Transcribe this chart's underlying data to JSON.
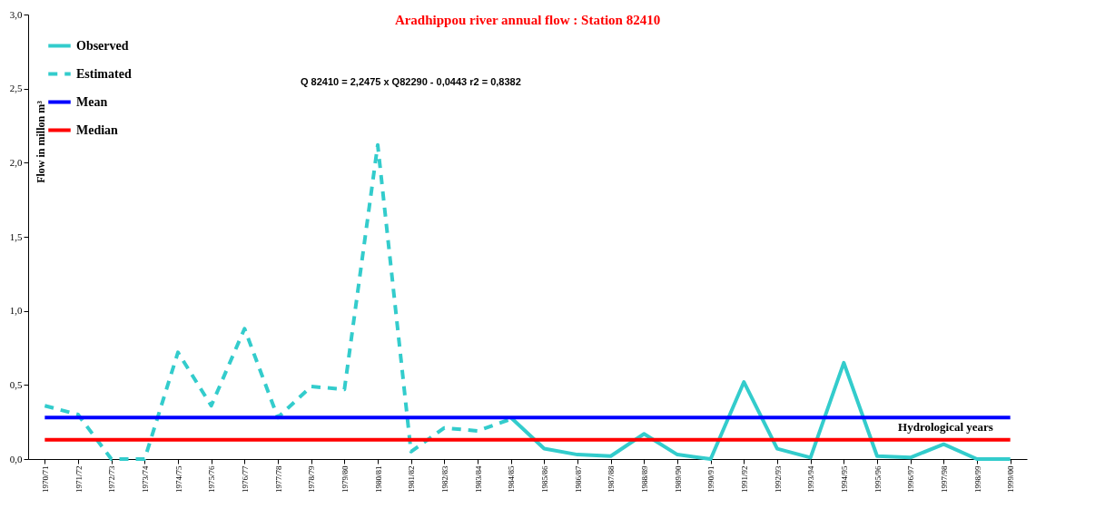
{
  "chart_data": {
    "type": "line",
    "title": "Aradhippou river annual flow : Station 82410",
    "xlabel": "Hydrological years",
    "ylabel": "Flow in millon m³",
    "annotations": [
      "Q 82410 = 2,2475 x Q82290 - 0,0443    r2 = 0,8382"
    ],
    "categories": [
      "1970/71",
      "1971/72",
      "1972/73",
      "1973/74",
      "1974/75",
      "1975/76",
      "1976/77",
      "1977/78",
      "1978/79",
      "1979/80",
      "1980/81",
      "1981/82",
      "1982/83",
      "1983/84",
      "1984/85",
      "1985/86",
      "1986/87",
      "1987/88",
      "1988/89",
      "1989/90",
      "1990/91",
      "1991/92",
      "1992/93",
      "1993/94",
      "1994/95",
      "1995/96",
      "1996/97",
      "1997/98",
      "1998/99",
      "1999/00"
    ],
    "series": [
      {
        "name": "Observed",
        "color": "#33cccc",
        "line_style": "solid",
        "values": [
          null,
          null,
          null,
          null,
          null,
          null,
          null,
          null,
          null,
          null,
          null,
          null,
          null,
          null,
          0.28,
          0.07,
          0.03,
          0.02,
          0.17,
          0.03,
          0.0,
          0.52,
          0.07,
          0.01,
          0.65,
          0.02,
          0.01,
          0.1,
          0.0,
          0.0
        ]
      },
      {
        "name": "Estimated",
        "color": "#33cccc",
        "line_style": "dashed",
        "values": [
          0.36,
          0.3,
          0.0,
          0.0,
          0.72,
          0.36,
          0.88,
          0.28,
          0.49,
          0.47,
          2.12,
          0.05,
          0.21,
          0.19,
          0.27,
          null,
          null,
          null,
          null,
          null,
          null,
          null,
          null,
          null,
          null,
          null,
          null,
          null,
          null,
          null
        ]
      },
      {
        "name": "Mean",
        "color": "#0000ff",
        "line_style": "solid",
        "values": [
          0.28,
          0.28,
          0.28,
          0.28,
          0.28,
          0.28,
          0.28,
          0.28,
          0.28,
          0.28,
          0.28,
          0.28,
          0.28,
          0.28,
          0.28,
          0.28,
          0.28,
          0.28,
          0.28,
          0.28,
          0.28,
          0.28,
          0.28,
          0.28,
          0.28,
          0.28,
          0.28,
          0.28,
          0.28,
          0.28
        ]
      },
      {
        "name": "Median",
        "color": "#ff0000",
        "line_style": "solid",
        "values": [
          0.13,
          0.13,
          0.13,
          0.13,
          0.13,
          0.13,
          0.13,
          0.13,
          0.13,
          0.13,
          0.13,
          0.13,
          0.13,
          0.13,
          0.13,
          0.13,
          0.13,
          0.13,
          0.13,
          0.13,
          0.13,
          0.13,
          0.13,
          0.13,
          0.13,
          0.13,
          0.13,
          0.13,
          0.13,
          0.13
        ]
      }
    ],
    "ylim": [
      0,
      3
    ],
    "yticks": [
      {
        "value": 0,
        "label": "0,0"
      },
      {
        "value": 0.5,
        "label": "0,5"
      },
      {
        "value": 1,
        "label": "1,0"
      },
      {
        "value": 1.5,
        "label": "1,5"
      },
      {
        "value": 2,
        "label": "2,0"
      },
      {
        "value": 2.5,
        "label": "2,5"
      },
      {
        "value": 3,
        "label": "3,0"
      }
    ],
    "grid": false,
    "legend": "top left"
  }
}
